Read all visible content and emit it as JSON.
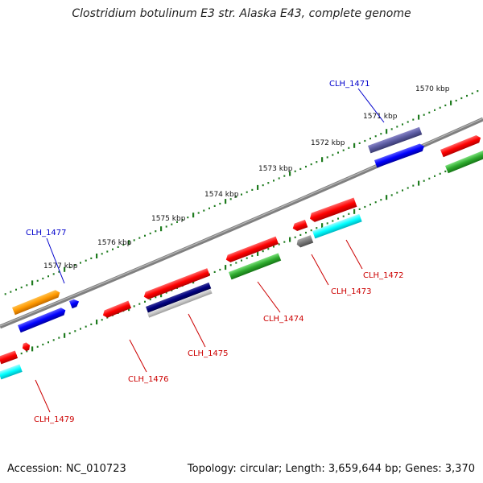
{
  "title": "Clostridium botulinum E3 str. Alaska E43, complete genome",
  "footer": {
    "accession": "Accession: NC_010723",
    "summary": "Topology: circular; Length: 3,659,644 bp; Genes: 3,370"
  },
  "colors": {
    "backbone": "#808080",
    "tick": "#1e7b1e",
    "label_blue": "#0000cc",
    "label_red": "#cc0000"
  },
  "kbp_labels": [
    "1570 kbp",
    "1571 kbp",
    "1572 kbp",
    "1573 kbp",
    "1574 kbp",
    "1575 kbp",
    "1576 kbp",
    "1577 kbp"
  ],
  "gene_labels": [
    {
      "text": "CLH_1471",
      "color": "blue"
    },
    {
      "text": "CLH_1472",
      "color": "red"
    },
    {
      "text": "CLH_1473",
      "color": "red"
    },
    {
      "text": "CLH_1474",
      "color": "red"
    },
    {
      "text": "CLH_1475",
      "color": "red"
    },
    {
      "text": "CLH_1476",
      "color": "red"
    },
    {
      "text": "CLH_1477",
      "color": "blue"
    },
    {
      "text": "CLH_1479",
      "color": "red"
    }
  ]
}
